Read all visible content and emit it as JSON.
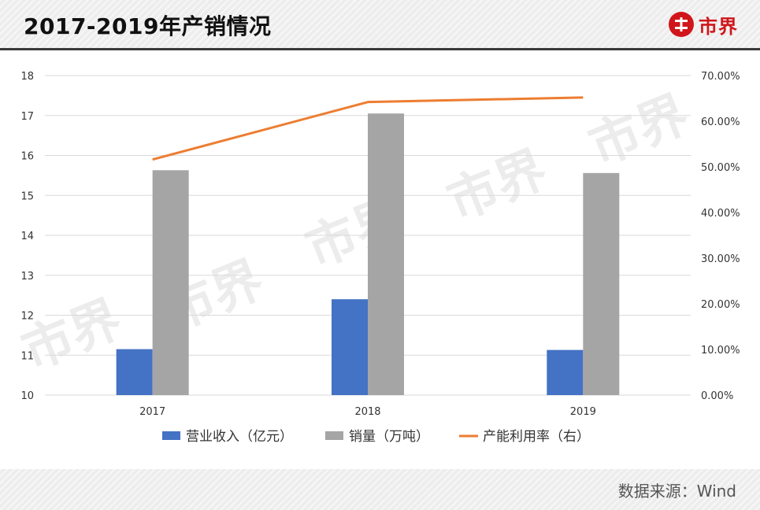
{
  "header": {
    "title": "2017-2019年产销情况",
    "logo_text": "市界"
  },
  "footer": {
    "source": "数据来源：Wind"
  },
  "watermark": {
    "text": "市界"
  },
  "colors": {
    "revenue": "#4472c4",
    "sales": "#a5a5a5",
    "utilization": "#ed7d31",
    "accent": "#d0161b"
  },
  "chart_data": {
    "type": "bar",
    "categories": [
      "2017",
      "2018",
      "2019"
    ],
    "series": [
      {
        "name": "营业收入（亿元）",
        "type": "bar",
        "axis": "left",
        "values": [
          11.15,
          12.4,
          11.13
        ]
      },
      {
        "name": "销量（万吨）",
        "type": "bar",
        "axis": "left",
        "values": [
          15.63,
          17.05,
          15.56
        ]
      },
      {
        "name": "产能利用率（右）",
        "type": "line",
        "axis": "right",
        "values": [
          0.516,
          0.642,
          0.652
        ]
      }
    ],
    "y_left": {
      "ylim": [
        10,
        18
      ],
      "ticks": [
        "10",
        "11",
        "12",
        "13",
        "14",
        "15",
        "16",
        "17",
        "18"
      ]
    },
    "y_right": {
      "ylim": [
        0,
        0.7
      ],
      "ticks": [
        "0.00%",
        "10.00%",
        "20.00%",
        "30.00%",
        "40.00%",
        "50.00%",
        "60.00%",
        "70.00%"
      ]
    },
    "grid": true,
    "legend": "bottom"
  }
}
